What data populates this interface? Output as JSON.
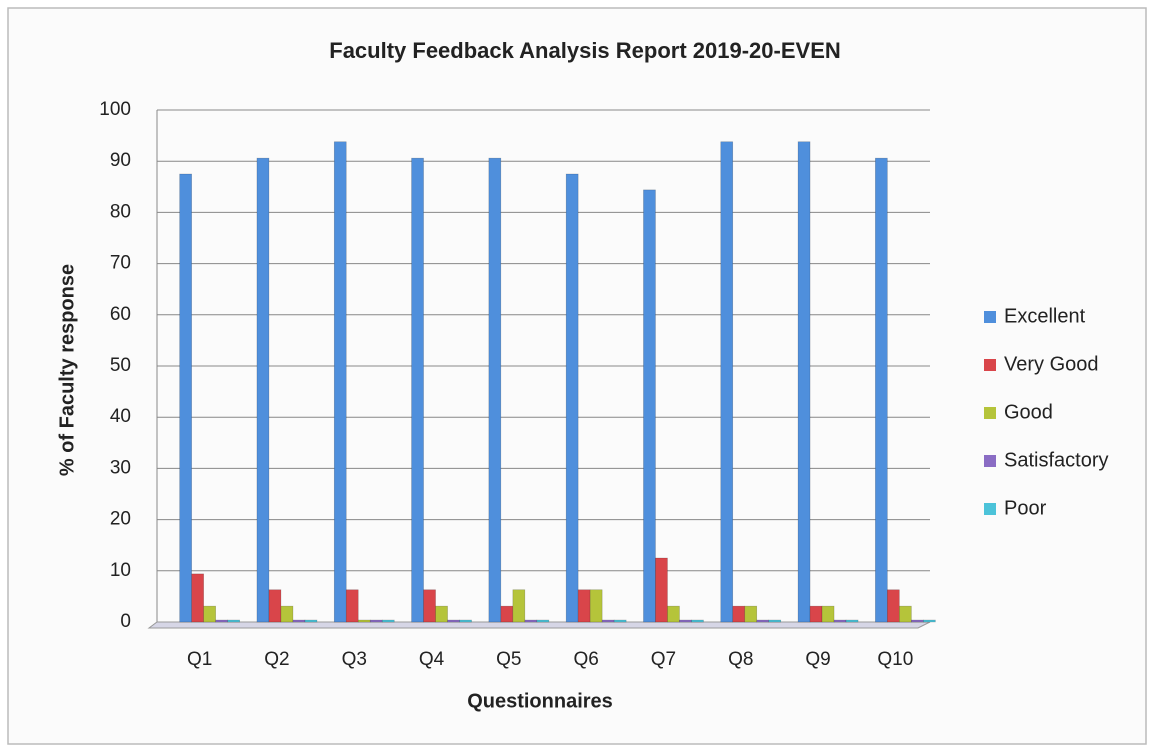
{
  "chart_data": {
    "type": "bar",
    "title": "Faculty Feedback Analysis Report 2019-20-EVEN",
    "x_label": "Questionnaires",
    "y_label": "% of Faculty response",
    "categories": [
      "Q1",
      "Q2",
      "Q3",
      "Q4",
      "Q5",
      "Q6",
      "Q7",
      "Q8",
      "Q9",
      "Q10"
    ],
    "series": [
      {
        "name": "Excellent",
        "color": "#4f8fdc",
        "values": [
          87.5,
          90.6,
          93.8,
          90.6,
          90.6,
          87.5,
          84.4,
          93.8,
          93.8,
          90.6
        ]
      },
      {
        "name": "Very Good",
        "color": "#d9454a",
        "values": [
          9.4,
          6.3,
          6.3,
          6.3,
          3.1,
          6.3,
          12.5,
          3.1,
          3.1,
          6.3
        ]
      },
      {
        "name": "Good",
        "color": "#b5c43a",
        "values": [
          3.1,
          3.1,
          0,
          3.1,
          6.3,
          6.3,
          3.1,
          3.1,
          3.1,
          3.1
        ]
      },
      {
        "name": "Satisfactory",
        "color": "#8a6cc4",
        "values": [
          0,
          0,
          0,
          0,
          0,
          0,
          0,
          0,
          0,
          0
        ]
      },
      {
        "name": "Poor",
        "color": "#4cc3d9",
        "values": [
          0,
          0,
          0,
          0,
          0,
          0,
          0,
          0,
          0,
          0
        ]
      }
    ],
    "ylim": [
      0,
      100
    ],
    "yticks": [
      0,
      10,
      20,
      30,
      40,
      50,
      60,
      70,
      80,
      90,
      100
    ],
    "grid": true,
    "legend": "right"
  }
}
